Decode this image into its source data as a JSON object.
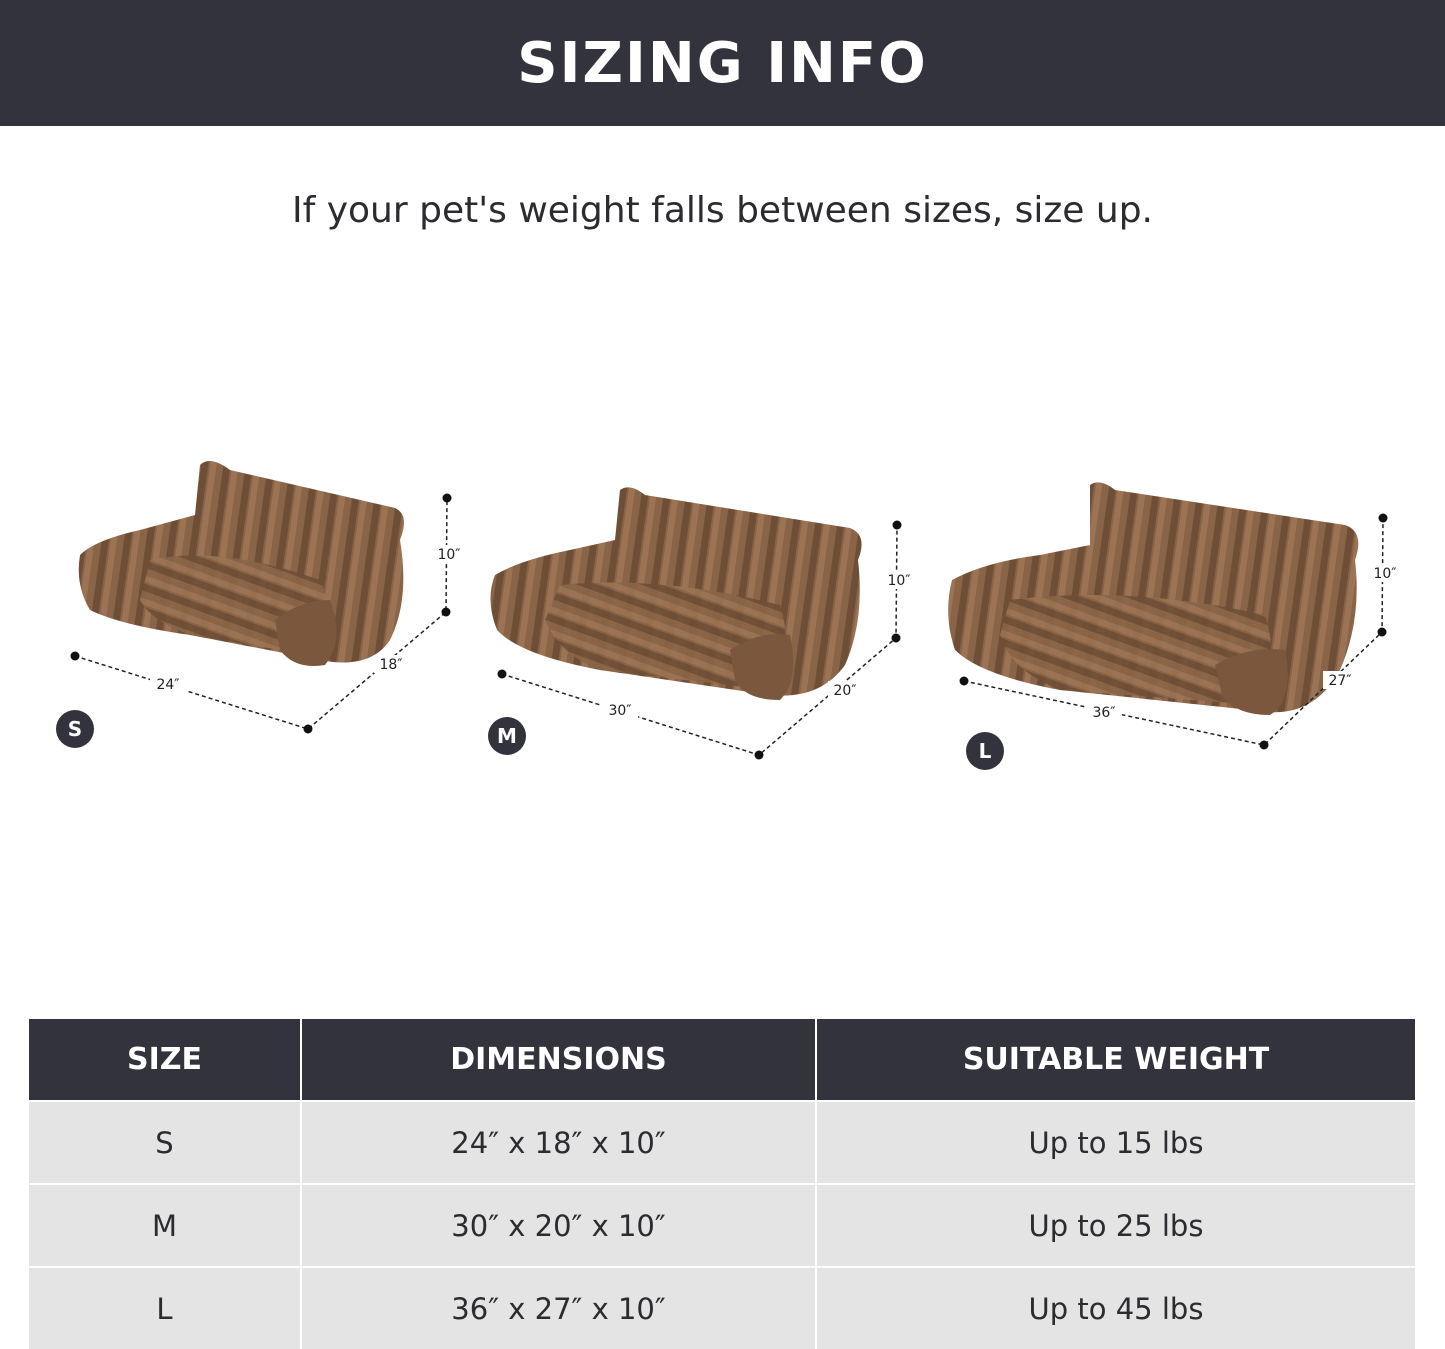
{
  "header": {
    "title": "SIZING INFO"
  },
  "subtitle": "If your pet's weight falls between sizes, size up.",
  "products": [
    {
      "badge": "S",
      "width": "24″",
      "depth": "18″",
      "height": "10″"
    },
    {
      "badge": "M",
      "width": "30″",
      "depth": "20″",
      "height": "10″"
    },
    {
      "badge": "L",
      "width": "36″",
      "depth": "27″",
      "height": "10″"
    }
  ],
  "colors": {
    "dark": "#33333d",
    "bed": "#8a6446",
    "row": "#e4e4e4"
  },
  "table": {
    "headers": [
      "SIZE",
      "DIMENSIONS",
      "SUITABLE WEIGHT"
    ],
    "rows": [
      [
        "S",
        "24″ x 18″ x 10″",
        "Up to 15 lbs"
      ],
      [
        "M",
        "30″ x 20″ x 10″",
        "Up to 25 lbs"
      ],
      [
        "L",
        "36″ x 27″ x 10″",
        "Up to 45 lbs"
      ]
    ]
  }
}
